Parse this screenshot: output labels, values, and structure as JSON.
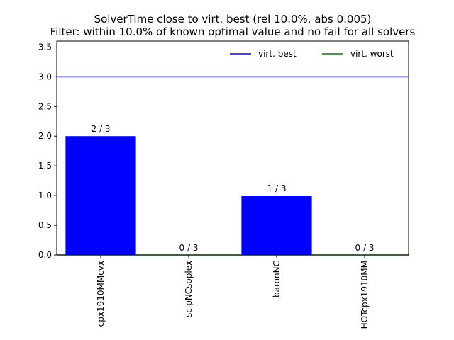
{
  "chart_data": {
    "type": "bar",
    "title": [
      "SolverTime close to virt. best (rel 10.0%, abs 0.005)",
      "Filter: within 10.0% of known optimal value and no fail for all solvers"
    ],
    "xlabel": "",
    "ylabel": "",
    "categories": [
      "cpx1910MMcvx",
      "scipNCsoplex",
      "baronNC",
      "HOTcpx1910MM"
    ],
    "values": [
      2,
      0,
      1,
      0
    ],
    "bar_labels": [
      "2 / 3",
      "0 / 3",
      "1 / 3",
      "0 / 3"
    ],
    "bar_color": "#0000ff",
    "ylim": [
      0,
      3.6
    ],
    "yticks": [
      0.0,
      0.5,
      1.0,
      1.5,
      2.0,
      2.5,
      3.0,
      3.5
    ],
    "ytick_labels": [
      "0.0",
      "0.5",
      "1.0",
      "1.5",
      "2.0",
      "2.5",
      "3.0",
      "3.5"
    ],
    "hlines": [
      {
        "name": "virt. best",
        "y": 3.0,
        "color": "#0000ff"
      },
      {
        "name": "virt. worst",
        "y": 0.0,
        "color": "#008000"
      }
    ],
    "legend": {
      "placement": "top-right",
      "entries": [
        "virt. best",
        "virt. worst"
      ]
    },
    "grid": false
  }
}
